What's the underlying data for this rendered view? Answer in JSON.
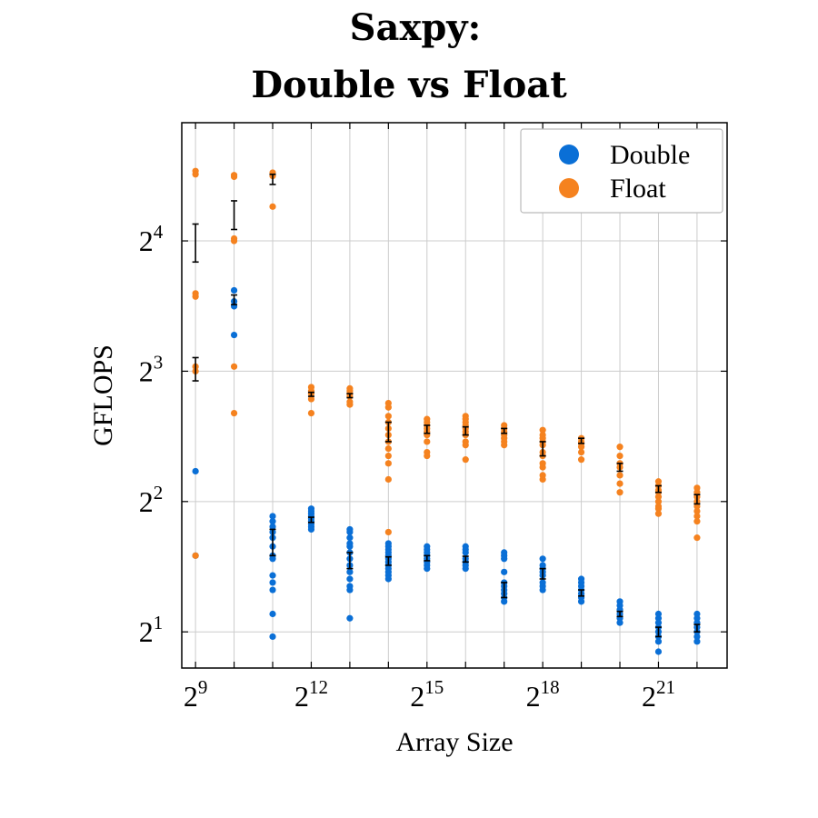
{
  "chart_data": {
    "type": "scatter",
    "title_lines": [
      "Saxpy:",
      "Double vs Float"
    ],
    "xlabel": "Array Size",
    "ylabel": "GFLOPS",
    "x_scale": "log2",
    "y_scale": "log2",
    "xlim": [
      400,
      7200000
    ],
    "ylim": [
      1.65,
      30
    ],
    "grid": true,
    "legend_position": "top-right",
    "x_ticks": [
      {
        "base": "2",
        "exp": "9",
        "value": 512
      },
      {
        "base": "2",
        "exp": "12",
        "value": 4096
      },
      {
        "base": "2",
        "exp": "15",
        "value": 32768
      },
      {
        "base": "2",
        "exp": "18",
        "value": 262144
      },
      {
        "base": "2",
        "exp": "21",
        "value": 2097152
      }
    ],
    "x_minor_ticks": [
      1024,
      2048,
      8192,
      16384,
      65536,
      131072,
      524288,
      1048576,
      4194304
    ],
    "y_ticks": [
      {
        "base": "2",
        "exp": "1",
        "value": 2
      },
      {
        "base": "2",
        "exp": "2",
        "value": 4
      },
      {
        "base": "2",
        "exp": "3",
        "value": 8
      },
      {
        "base": "2",
        "exp": "4",
        "value": 16
      }
    ],
    "series": [
      {
        "name": "Double",
        "color": "#0a6fd6",
        "points": [
          {
            "x": 512,
            "y": [
              3.0,
              4.7
            ]
          },
          {
            "x": 1024,
            "y": [
              12.3,
              11.6,
              11.3,
              9.7
            ]
          },
          {
            "x": 2048,
            "y": [
              3.7,
              3.6,
              3.5,
              3.4,
              3.3,
              3.15,
              3.0,
              2.95,
              2.7,
              2.6,
              2.5,
              2.2,
              1.95
            ]
          },
          {
            "x": 4096,
            "y": [
              3.85,
              3.8,
              3.75,
              3.7,
              3.65,
              3.6,
              3.55,
              3.5,
              3.45
            ]
          },
          {
            "x": 8192,
            "y": [
              3.45,
              3.4,
              3.3,
              3.2,
              3.15,
              3.05,
              2.95,
              2.85,
              2.75,
              2.65,
              2.55,
              2.5,
              2.15
            ]
          },
          {
            "x": 16384,
            "y": [
              3.2,
              3.15,
              3.1,
              3.05,
              3.0,
              2.95,
              2.9,
              2.85,
              2.8,
              2.75,
              2.7,
              2.65
            ]
          },
          {
            "x": 32768,
            "y": [
              3.15,
              3.1,
              3.05,
              3.0,
              2.95,
              2.9,
              2.85,
              2.8
            ]
          },
          {
            "x": 65536,
            "y": [
              3.15,
              3.1,
              3.05,
              2.95,
              2.9,
              2.85,
              2.8
            ]
          },
          {
            "x": 131072,
            "y": [
              3.05,
              3.0,
              2.95,
              2.75,
              2.6,
              2.55,
              2.5,
              2.45,
              2.4,
              2.35
            ]
          },
          {
            "x": 262144,
            "y": [
              2.95,
              2.85,
              2.8,
              2.75,
              2.7,
              2.6,
              2.55,
              2.5
            ]
          },
          {
            "x": 524288,
            "y": [
              2.65,
              2.6,
              2.55,
              2.5,
              2.45,
              2.4,
              2.35
            ]
          },
          {
            "x": 1048576,
            "y": [
              2.35,
              2.3,
              2.25,
              2.2,
              2.15,
              2.1
            ]
          },
          {
            "x": 2097152,
            "y": [
              2.2,
              2.15,
              2.1,
              2.05,
              2.0,
              1.95,
              1.9,
              1.8
            ]
          },
          {
            "x": 4194304,
            "y": [
              2.2,
              2.15,
              2.1,
              2.05,
              2.0,
              1.95,
              1.9
            ]
          }
        ]
      },
      {
        "name": "Float",
        "color": "#f5821f",
        "points": [
          {
            "x": 512,
            "y": [
              23.2,
              22.8,
              12.1,
              11.9,
              8.2,
              8.0,
              3.0
            ]
          },
          {
            "x": 1024,
            "y": [
              22.7,
              22.5,
              16.2,
              16.0,
              8.2,
              6.4
            ]
          },
          {
            "x": 2048,
            "y": [
              23.0,
              22.6,
              19.2
            ]
          },
          {
            "x": 4096,
            "y": [
              7.35,
              7.2,
              7.1,
              6.9,
              6.4
            ]
          },
          {
            "x": 8192,
            "y": [
              7.3,
              7.2,
              7.1,
              7.0,
              6.8,
              6.7
            ]
          },
          {
            "x": 16384,
            "y": [
              6.75,
              6.6,
              6.3,
              6.1,
              5.9,
              5.7,
              5.5,
              5.3,
              5.1,
              4.9,
              4.5,
              3.4
            ]
          },
          {
            "x": 32768,
            "y": [
              6.2,
              6.1,
              6.0,
              5.9,
              5.8,
              5.7,
              5.5,
              5.2,
              5.1
            ]
          },
          {
            "x": 65536,
            "y": [
              6.3,
              6.2,
              6.1,
              6.0,
              5.9,
              5.8,
              5.7,
              5.5,
              5.4,
              5.0
            ]
          },
          {
            "x": 131072,
            "y": [
              6.0,
              5.9,
              5.8,
              5.7,
              5.6,
              5.5,
              5.4
            ]
          },
          {
            "x": 262144,
            "y": [
              5.85,
              5.7,
              5.6,
              5.5,
              5.4,
              5.2,
              5.1,
              4.9,
              4.8,
              4.6,
              4.5
            ]
          },
          {
            "x": 524288,
            "y": [
              5.6,
              5.5,
              5.45,
              5.35,
              5.2,
              5.0
            ]
          },
          {
            "x": 1048576,
            "y": [
              5.35,
              5.1,
              4.9,
              4.8,
              4.6,
              4.4,
              4.2
            ]
          },
          {
            "x": 2097152,
            "y": [
              4.45,
              4.35,
              4.25,
              4.2,
              4.1,
              4.0,
              3.9,
              3.85,
              3.75
            ]
          },
          {
            "x": 4194304,
            "y": [
              4.3,
              4.2,
              4.1,
              4.0,
              3.9,
              3.8,
              3.7,
              3.6,
              3.3
            ]
          }
        ]
      }
    ],
    "error_bars": {
      "color": "#000000",
      "items": [
        {
          "x": 512,
          "low": 14.3,
          "high": 17.5
        },
        {
          "x": 512,
          "low": 7.6,
          "high": 8.6
        },
        {
          "x": 1024,
          "low": 17.0,
          "high": 19.8
        },
        {
          "x": 1024,
          "low": 11.4,
          "high": 12.0
        },
        {
          "x": 2048,
          "low": 21.6,
          "high": 22.8
        },
        {
          "x": 2048,
          "low": 3.0,
          "high": 3.45
        },
        {
          "x": 4096,
          "low": 7.0,
          "high": 7.15
        },
        {
          "x": 4096,
          "low": 3.58,
          "high": 3.68
        },
        {
          "x": 8192,
          "low": 6.95,
          "high": 7.1
        },
        {
          "x": 8192,
          "low": 2.8,
          "high": 3.05
        },
        {
          "x": 16384,
          "low": 5.5,
          "high": 6.1
        },
        {
          "x": 16384,
          "low": 2.85,
          "high": 2.98
        },
        {
          "x": 32768,
          "low": 5.75,
          "high": 6.0
        },
        {
          "x": 32768,
          "low": 2.92,
          "high": 3.0
        },
        {
          "x": 65536,
          "low": 5.7,
          "high": 5.95
        },
        {
          "x": 65536,
          "low": 2.9,
          "high": 2.99
        },
        {
          "x": 131072,
          "low": 5.75,
          "high": 5.9
        },
        {
          "x": 131072,
          "low": 2.4,
          "high": 2.6
        },
        {
          "x": 262144,
          "low": 5.1,
          "high": 5.5
        },
        {
          "x": 262144,
          "low": 2.65,
          "high": 2.8
        },
        {
          "x": 524288,
          "low": 5.45,
          "high": 5.6
        },
        {
          "x": 524288,
          "low": 2.42,
          "high": 2.5
        },
        {
          "x": 1048576,
          "low": 4.7,
          "high": 4.9
        },
        {
          "x": 1048576,
          "low": 2.17,
          "high": 2.23
        },
        {
          "x": 2097152,
          "low": 4.2,
          "high": 4.35
        },
        {
          "x": 2097152,
          "low": 1.95,
          "high": 2.05
        },
        {
          "x": 4194304,
          "low": 3.95,
          "high": 4.15
        },
        {
          "x": 4194304,
          "low": 2.0,
          "high": 2.08
        }
      ]
    }
  }
}
